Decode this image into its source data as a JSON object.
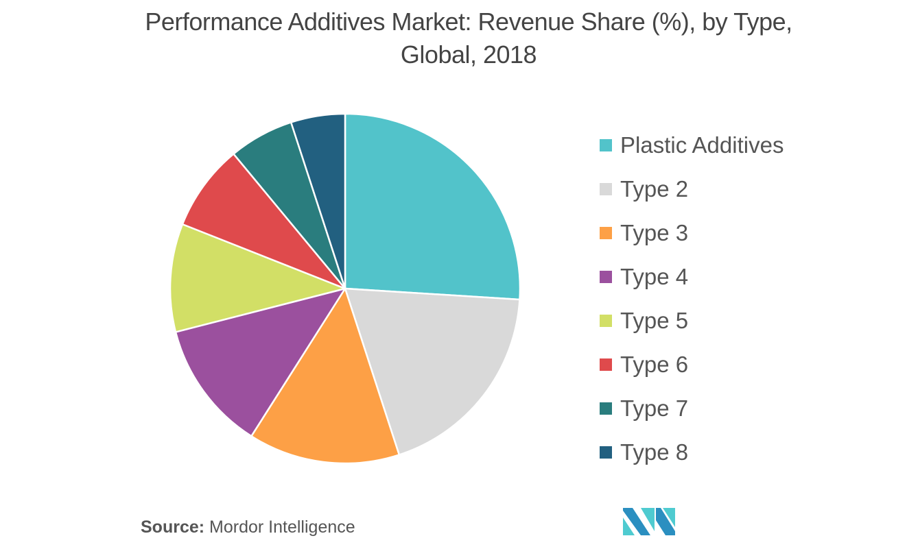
{
  "title": {
    "line1": "Performance Additives Market: Revenue Share (%), by Type,",
    "line2": "Global, 2018"
  },
  "legend": {
    "items": [
      {
        "label": "Plastic Additives",
        "color": "#52c3ca"
      },
      {
        "label": "Type 2",
        "color": "#d9d9d9"
      },
      {
        "label": "Type 3",
        "color": "#fda046"
      },
      {
        "label": "Type 4",
        "color": "#9b509e"
      },
      {
        "label": "Type 5",
        "color": "#d2df66"
      },
      {
        "label": "Type 6",
        "color": "#df4a4c"
      },
      {
        "label": "Type 7",
        "color": "#2a7d7e"
      },
      {
        "label": "Type 8",
        "color": "#226080"
      }
    ]
  },
  "source": {
    "label": "Source:",
    "text": "Mordor Intelligence"
  },
  "logo": {
    "name": "mordor-intelligence-logo",
    "colors": [
      "#2b8fc0",
      "#4fcbd0"
    ]
  },
  "chart_data": {
    "type": "pie",
    "title": "Performance Additives Market: Revenue Share (%), by Type, Global, 2018",
    "categories": [
      "Plastic Additives",
      "Type 2",
      "Type 3",
      "Type 4",
      "Type 5",
      "Type 6",
      "Type 7",
      "Type 8"
    ],
    "values": [
      26,
      19,
      14,
      12,
      10,
      8,
      6,
      5
    ],
    "colors": [
      "#52c3ca",
      "#d9d9d9",
      "#fda046",
      "#9b509e",
      "#d2df66",
      "#df4a4c",
      "#2a7d7e",
      "#226080"
    ],
    "start_angle_deg": 0,
    "direction": "clockwise",
    "legend_position": "right",
    "data_labels": false,
    "source": "Mordor Intelligence"
  }
}
